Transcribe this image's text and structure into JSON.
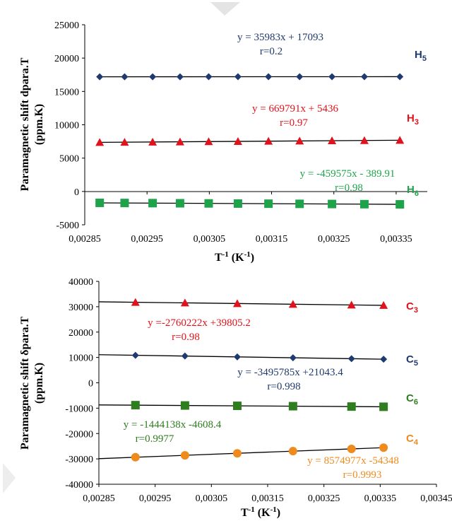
{
  "chart_data": [
    {
      "type": "scatter",
      "x_ticks": [
        "0,00285",
        "0,00295",
        "0,00305",
        "0,00315",
        "0,00325",
        "0,00335"
      ],
      "y_ticks": [
        "-5000",
        "0",
        "5000",
        "10000",
        "15000",
        "20000",
        "25000"
      ],
      "xlim": [
        0.00285,
        0.0034
      ],
      "ylim": [
        -5000,
        25000
      ],
      "ylabel_line1": "Paramagnetic shift  dpara.T",
      "ylabel_line2": "(ppm.K)",
      "xlabel_main": "T",
      "xlabel_sup": "-1",
      "xlabel_unit": "(K",
      "xlabel_unit_sup": "-1",
      "xlabel_close": ")",
      "series": [
        {
          "name": "H5",
          "label_main": "H",
          "label_sub": "5",
          "color": "#1f3a6e",
          "marker": "diamond",
          "equation": "y = 35983x + 17093",
          "r": "r=0.2",
          "slope": 35983,
          "intercept": 17093,
          "x": [
            0.002874,
            0.002914,
            0.002959,
            0.003003,
            0.003049,
            0.003096,
            0.003145,
            0.003195,
            0.003247,
            0.003299,
            0.003356
          ],
          "y": [
            17196,
            17198,
            17199,
            17201,
            17203,
            17204,
            17206,
            17208,
            17210,
            17212,
            17214
          ]
        },
        {
          "name": "H3",
          "label_main": "H",
          "label_sub": "3",
          "color": "#e0121b",
          "marker": "triangle",
          "equation": "y = 669791x + 5436",
          "r": "r=0.97",
          "slope": 669791,
          "intercept": 5436,
          "x": [
            0.002874,
            0.002914,
            0.002959,
            0.003003,
            0.003049,
            0.003096,
            0.003145,
            0.003195,
            0.003247,
            0.003299,
            0.003356
          ],
          "y": [
            7361,
            7388,
            7418,
            7448,
            7478,
            7510,
            7543,
            7576,
            7611,
            7646,
            7684
          ]
        },
        {
          "name": "H6",
          "label_main": "H",
          "label_sub": "6",
          "color": "#1fa34a",
          "marker": "square",
          "equation": "y = -459575x - 389.91",
          "r": "r=0.98",
          "slope": -459575,
          "intercept": -389.91,
          "x": [
            0.002874,
            0.002914,
            0.002959,
            0.003003,
            0.003049,
            0.003096,
            0.003145,
            0.003195,
            0.003247,
            0.003299,
            0.003356
          ],
          "y": [
            -1711,
            -1729,
            -1750,
            -1770,
            -1791,
            -1813,
            -1835,
            -1858,
            -1882,
            -1906,
            -1932
          ]
        }
      ]
    },
    {
      "type": "scatter",
      "x_ticks": [
        "0,00285",
        "0,00295",
        "0,00305",
        "0,00315",
        "0,00325",
        "0,00335",
        "0,00345"
      ],
      "y_ticks": [
        "-40000",
        "-30000",
        "-20000",
        "-10000",
        "0",
        "10000",
        "20000",
        "30000",
        "40000"
      ],
      "xlim": [
        0.00285,
        0.00345
      ],
      "ylim": [
        -40000,
        40000
      ],
      "ylabel_line1": "Paramagnetic shift  δpara.T",
      "ylabel_line2": "(ppm.K)",
      "xlabel_main": "T",
      "xlabel_sup": "-1",
      "xlabel_unit": "(K",
      "xlabel_unit_sup": "-1",
      "xlabel_close": ")",
      "series": [
        {
          "name": "C3",
          "label_main": "C",
          "label_sub": "3",
          "color": "#e0121b",
          "marker": "triangle",
          "equation": "y =-2760222x +39805.2",
          "r": "r=0.98",
          "slope": -2760222,
          "intercept": 39805.2,
          "x": [
            0.002915,
            0.003003,
            0.003096,
            0.003195,
            0.003299,
            0.003356
          ],
          "y": [
            31759,
            31516,
            31259,
            30986,
            30699,
            30542
          ]
        },
        {
          "name": "C5",
          "label_main": "C",
          "label_sub": "5",
          "color": "#1f3a6e",
          "marker": "diamond",
          "equation": "y = -3495785x +21043.4",
          "r": "r=0.998",
          "slope": -3495785,
          "intercept": 21043.4,
          "x": [
            0.002915,
            0.003003,
            0.003096,
            0.003195,
            0.003299,
            0.003356
          ],
          "y": [
            10853,
            10546,
            10220,
            9874,
            9511,
            9311
          ]
        },
        {
          "name": "C6",
          "label_main": "C",
          "label_sub": "6",
          "color": "#2e7d1f",
          "marker": "square",
          "equation": "y = -1444138x -4608.4",
          "r": "r=0.9977",
          "slope": -1444138,
          "intercept": -4608.4,
          "x": [
            0.002915,
            0.003003,
            0.003096,
            0.003195,
            0.003299,
            0.003356
          ],
          "y": [
            -8818,
            -8945,
            -9079,
            -9222,
            -9373,
            -9455
          ]
        },
        {
          "name": "C4",
          "label_main": "C",
          "label_sub": "4",
          "color": "#ef8a1d",
          "marker": "circle",
          "equation": "y = 8574977x -54348",
          "r": "r=0.9993",
          "slope": 8574977,
          "intercept": -54348,
          "x": [
            0.002915,
            0.003003,
            0.003096,
            0.003195,
            0.003299,
            0.003356
          ],
          "y": [
            -29352,
            -28597,
            -27800,
            -26951,
            -26059,
            -25570
          ]
        }
      ]
    }
  ]
}
